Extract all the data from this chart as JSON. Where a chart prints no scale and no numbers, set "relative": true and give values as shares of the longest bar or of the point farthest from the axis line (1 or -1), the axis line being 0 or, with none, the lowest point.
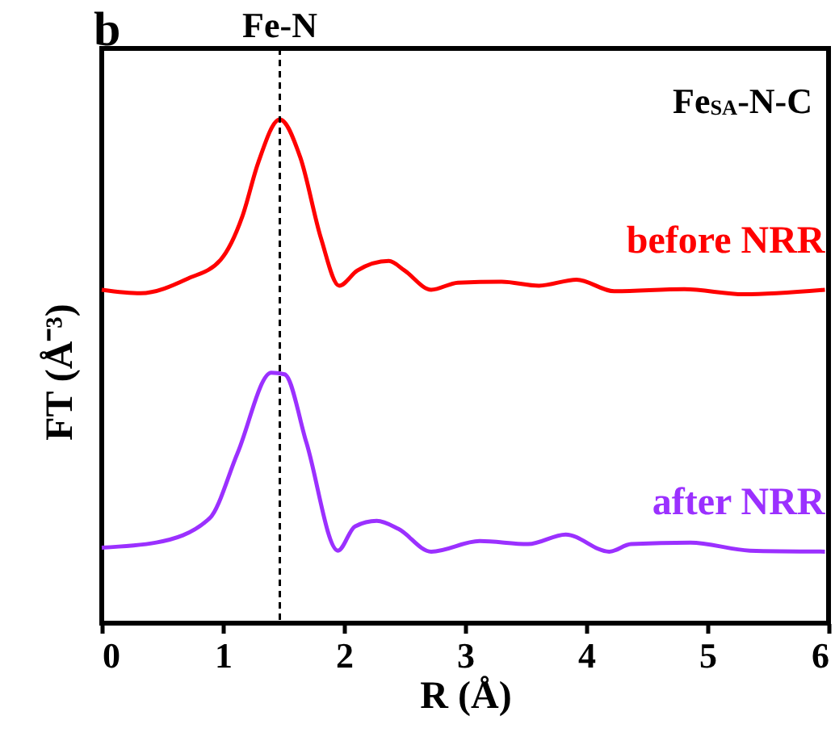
{
  "chart_data": {
    "type": "line",
    "relative": true,
    "xlabel": "R (Å)",
    "ylabel": "FT (Å⁻³)",
    "xlim": [
      0,
      6
    ],
    "xticks": [
      0,
      1,
      2,
      3,
      4,
      5,
      6
    ],
    "legend": false,
    "grid": false,
    "annotations": [
      "b",
      "Fe$_{SA}$-N-C"
    ],
    "ref_lines": [
      {
        "axis": "x",
        "value": 1.47,
        "label": "Fe-N",
        "color": "#000000",
        "line_style": "dashed"
      }
    ],
    "series": [
      {
        "name": "before NRR",
        "color": "#ff0000",
        "x": [
          0,
          0.32,
          0.71,
          0.98,
          1.16,
          1.29,
          1.47,
          1.64,
          1.81,
          1.96,
          2.11,
          2.37,
          2.5,
          2.72,
          2.94,
          3.3,
          3.61,
          3.92,
          4.23,
          4.81,
          5.3,
          5.97
        ],
        "values": [
          0.662,
          0.655,
          0.684,
          0.721,
          0.807,
          0.913,
          1.0,
          0.924,
          0.764,
          0.67,
          0.7,
          0.719,
          0.7,
          0.662,
          0.676,
          0.678,
          0.67,
          0.682,
          0.659,
          0.663,
          0.653,
          0.662
        ]
      },
      {
        "name": "after NRR",
        "color": "#9b30ff",
        "x": [
          0,
          0.45,
          0.89,
          1.12,
          1.4,
          1.51,
          1.69,
          1.95,
          2.09,
          2.27,
          2.45,
          2.72,
          3.12,
          3.52,
          3.83,
          4.19,
          4.37,
          4.86,
          5.35,
          5.97
        ],
        "values": [
          0.15,
          0.16,
          0.208,
          0.337,
          0.497,
          0.494,
          0.358,
          0.144,
          0.192,
          0.203,
          0.187,
          0.142,
          0.163,
          0.157,
          0.176,
          0.142,
          0.157,
          0.16,
          0.144,
          0.142
        ]
      }
    ]
  }
}
